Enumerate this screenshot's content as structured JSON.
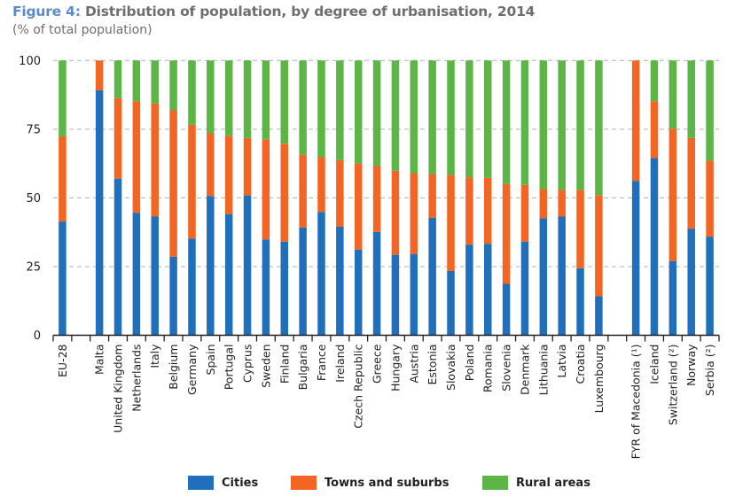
{
  "header": {
    "figure_label": "Figure 4:",
    "title": " Distribution of population, by degree of urbanisation, 2014",
    "subtitle": "(% of total population)"
  },
  "colors": {
    "cities": "#1f6fba",
    "towns": "#f26522",
    "rural": "#5cb545",
    "title_accent": "#5b8cc9",
    "title_text": "#6d6e70",
    "grid": "#b0b0b0"
  },
  "chart_data": {
    "type": "bar",
    "stacked": true,
    "title": "Figure 4: Distribution of population, by degree of urbanisation, 2014",
    "subtitle": "(% of total population)",
    "xlabel": "",
    "ylabel": "",
    "ylim": [
      0,
      100
    ],
    "yticks": [
      0,
      25,
      50,
      75,
      100
    ],
    "grid": "horizontal-dashed",
    "legend_position": "bottom",
    "categories": [
      "EU-28",
      "",
      "Malta",
      "United Kingdom",
      "Netherlands",
      "Italy",
      "Belgium",
      "Germany",
      "Spain",
      "Portugal",
      "Cyprus",
      "Sweden",
      "Finland",
      "Bulgaria",
      "France",
      "Ireland",
      "Czech Republic",
      "Greece",
      "Hungary",
      "Austria",
      "Estonia",
      "Slovakia",
      "Poland",
      "Romania",
      "Slovenia",
      "Denmark",
      "Lithuania",
      "Latvia",
      "Croatia",
      "Luxembourg",
      "",
      "FYR of Macedonia (¹)",
      "Iceland",
      "Switzerland (²)",
      "Norway",
      "Serbia (²)"
    ],
    "series": [
      {
        "name": "Cities",
        "values": [
          41.4,
          null,
          89.2,
          57.0,
          44.6,
          43.2,
          28.6,
          35.2,
          50.7,
          44.1,
          50.9,
          34.9,
          34.1,
          39.2,
          44.9,
          39.5,
          31.2,
          37.6,
          29.3,
          29.6,
          42.8,
          23.4,
          33.0,
          33.3,
          18.7,
          34.1,
          42.6,
          43.2,
          24.4,
          14.2,
          null,
          56.2,
          64.5,
          27.0,
          38.8,
          35.9
        ]
      },
      {
        "name": "Towns and suburbs",
        "values": [
          31.0,
          null,
          10.8,
          29.3,
          40.6,
          41.2,
          53.3,
          41.4,
          22.8,
          28.5,
          20.9,
          36.4,
          35.6,
          26.5,
          19.9,
          24.2,
          31.3,
          24.1,
          30.6,
          29.4,
          15.9,
          35.0,
          24.5,
          24.0,
          36.3,
          20.6,
          10.6,
          9.7,
          28.5,
          36.8,
          null,
          43.8,
          20.7,
          48.2,
          33.0,
          27.6
        ]
      },
      {
        "name": "Rural areas",
        "values": [
          27.6,
          null,
          0.0,
          13.7,
          14.8,
          15.6,
          18.1,
          23.4,
          26.5,
          27.4,
          28.2,
          28.7,
          30.3,
          34.3,
          35.2,
          36.3,
          37.5,
          38.3,
          40.1,
          41.0,
          41.3,
          41.6,
          42.5,
          42.7,
          45.0,
          45.3,
          46.8,
          47.1,
          47.1,
          49.0,
          null,
          0.0,
          14.8,
          24.8,
          28.2,
          36.5
        ]
      }
    ]
  },
  "legend": [
    {
      "label": "Cities",
      "key": "cities"
    },
    {
      "label": "Towns and suburbs",
      "key": "towns"
    },
    {
      "label": "Rural areas",
      "key": "rural"
    }
  ]
}
